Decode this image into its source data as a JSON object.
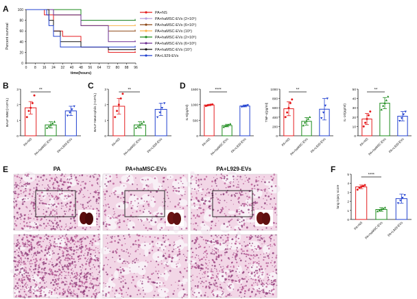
{
  "panels": {
    "A": "A",
    "B": "B",
    "C": "C",
    "D": "D",
    "E": "E",
    "F": "F"
  },
  "colors": {
    "red": "#e41a1c",
    "lavender": "#b59ddc",
    "brown": "#8b4513",
    "orange": "#f7b24a",
    "green": "#1a8a1a",
    "purple": "#6a2c91",
    "black": "#111111",
    "blue": "#1f3fcf",
    "tissue_pink": "#e7a9c8",
    "tissue_dark": "#b85a95",
    "tissue_bg": "#f2d6e6",
    "alveoli": "#f8f0f6"
  },
  "chart_data": [
    {
      "id": "A",
      "type": "line",
      "xlabel": "time(hours)",
      "ylabel": "Percent survival",
      "xlim": [
        0,
        96
      ],
      "ylim": [
        0,
        100
      ],
      "xticks": [
        0,
        8,
        16,
        24,
        32,
        40,
        48,
        56,
        64,
        72,
        80,
        88,
        96
      ],
      "yticks": [
        0,
        20,
        40,
        60,
        80,
        100
      ],
      "legend_position": "right",
      "series": [
        {
          "name": "PA+NS",
          "color": "#e41a1c",
          "x": [
            0,
            16,
            24,
            32,
            48,
            72,
            96
          ],
          "y": [
            100,
            90,
            60,
            50,
            30,
            20,
            20
          ]
        },
        {
          "name": "PA+haMSC-EVs (2×10⁵)",
          "color": "#b59ddc",
          "x": [
            0,
            24,
            48,
            96
          ],
          "y": [
            100,
            90,
            80,
            80
          ]
        },
        {
          "name": "PA+haMSC-EVs (6×10⁵)",
          "color": "#8b4513",
          "x": [
            0,
            24,
            48,
            72,
            96
          ],
          "y": [
            100,
            90,
            70,
            60,
            60
          ]
        },
        {
          "name": "PA+haMSC-EVs (10⁶)",
          "color": "#f7b24a",
          "x": [
            0,
            24,
            48,
            72,
            96
          ],
          "y": [
            100,
            90,
            70,
            70,
            70
          ]
        },
        {
          "name": "PA+haMSC-EVs (2×10⁶)",
          "color": "#1a8a1a",
          "x": [
            0,
            48,
            96
          ],
          "y": [
            100,
            80,
            80
          ]
        },
        {
          "name": "PA+haMSC-EVs (6×10⁶)",
          "color": "#6a2c91",
          "x": [
            0,
            24,
            48,
            72,
            96
          ],
          "y": [
            100,
            90,
            70,
            40,
            40
          ]
        },
        {
          "name": "PA+haMSC-EVs (10⁷)",
          "color": "#111111",
          "x": [
            0,
            20,
            24,
            30,
            48,
            72,
            96
          ],
          "y": [
            100,
            80,
            60,
            40,
            30,
            25,
            25
          ]
        },
        {
          "name": "PA+L929-EVs",
          "color": "#1f3fcf",
          "x": [
            0,
            18,
            20,
            24,
            30,
            96
          ],
          "y": [
            100,
            90,
            70,
            50,
            30,
            30
          ]
        }
      ]
    },
    {
      "id": "B",
      "type": "bar",
      "ylabel": "BALF WBC(×10⁵/L)",
      "categories": [
        "PA+NS",
        "PA+haMSC-EVs",
        "PA+L929-EVs"
      ],
      "values": [
        1.8,
        0.7,
        1.6
      ],
      "errors": [
        0.4,
        0.2,
        0.3
      ],
      "point_sets": [
        [
          1.2,
          1.6,
          1.8,
          2.1,
          2.6
        ],
        [
          0.5,
          0.6,
          0.7,
          0.8,
          0.9
        ],
        [
          1.3,
          1.5,
          1.7,
          1.9
        ]
      ],
      "colors": [
        "#e41a1c",
        "#1a8a1a",
        "#1f3fcf"
      ],
      "ylim": [
        0,
        3
      ],
      "yticks": [
        0,
        1,
        2,
        3
      ],
      "sig": {
        "from": 0,
        "to": 1,
        "label": "**"
      }
    },
    {
      "id": "C",
      "type": "bar",
      "ylabel": "BALF Neutrophils (×10⁵/L)",
      "categories": [
        "PA+NS",
        "PA+haMSC-EVs",
        "PA+L929-EVs"
      ],
      "values": [
        1.9,
        0.7,
        1.7
      ],
      "errors": [
        0.5,
        0.2,
        0.4
      ],
      "point_sets": [
        [
          1.2,
          1.6,
          2.0,
          2.4,
          2.7
        ],
        [
          0.5,
          0.6,
          0.7,
          0.8,
          0.9
        ],
        [
          1.2,
          1.5,
          1.8,
          2.1
        ]
      ],
      "colors": [
        "#e41a1c",
        "#1a8a1a",
        "#1f3fcf"
      ],
      "ylim": [
        0,
        3
      ],
      "yticks": [
        0,
        1,
        2,
        3
      ],
      "sig": {
        "from": 0,
        "to": 1,
        "label": "**"
      }
    },
    {
      "id": "D1",
      "type": "bar",
      "ylabel": "IL-6(pg/ml)",
      "categories": [
        "PA+NS",
        "PA+haMSC-EVs",
        "PA+L929-EVs"
      ],
      "values": [
        990,
        330,
        960
      ],
      "errors": [
        20,
        40,
        30
      ],
      "point_sets": [
        [
          960,
          975,
          990,
          1000,
          1010
        ],
        [
          280,
          310,
          330,
          350,
          380
        ],
        [
          930,
          950,
          970,
          990
        ]
      ],
      "colors": [
        "#e41a1c",
        "#1a8a1a",
        "#1f3fcf"
      ],
      "ylim": [
        0,
        1500
      ],
      "yticks": [
        0,
        500,
        1000,
        1500
      ],
      "sig": {
        "from": 0,
        "to": 1,
        "label": "****"
      }
    },
    {
      "id": "D2",
      "type": "bar",
      "ylabel": "TNF-α(pg/ml)",
      "categories": [
        "PA+NS",
        "PA+haMSC-EVs",
        "PA+L929-EVs"
      ],
      "values": [
        580,
        310,
        570
      ],
      "errors": [
        150,
        80,
        230
      ],
      "point_sets": [
        [
          400,
          500,
          600,
          700,
          780
        ],
        [
          220,
          280,
          320,
          360,
          400
        ],
        [
          380,
          500,
          650,
          800
        ]
      ],
      "colors": [
        "#e41a1c",
        "#1a8a1a",
        "#1f3fcf"
      ],
      "ylim": [
        0,
        1000
      ],
      "yticks": [
        0,
        200,
        400,
        600,
        800,
        1000
      ],
      "sig": {
        "from": 0,
        "to": 1,
        "label": "**"
      }
    },
    {
      "id": "D3",
      "type": "bar",
      "ylabel": "IL-10(pg/ml)",
      "categories": [
        "PA+NS",
        "PA+haMSC-EVs",
        "PA+L929-EVs"
      ],
      "values": [
        18,
        35,
        21
      ],
      "errors": [
        6,
        6,
        5
      ],
      "point_sets": [
        [
          10,
          14,
          18,
          22,
          26
        ],
        [
          28,
          32,
          35,
          38,
          42
        ],
        [
          16,
          19,
          23,
          26
        ]
      ],
      "colors": [
        "#e41a1c",
        "#1a8a1a",
        "#1f3fcf"
      ],
      "ylim": [
        0,
        50
      ],
      "yticks": [
        0,
        10,
        20,
        30,
        40,
        50
      ],
      "sig": {
        "from": 0,
        "to": 1,
        "label": "**"
      }
    },
    {
      "id": "F",
      "type": "bar",
      "ylabel": "lung injury score",
      "categories": [
        "PA+NS",
        "PA+haMSC-EVs",
        "PA+L929-EVs"
      ],
      "values": [
        3.6,
        1.1,
        2.3
      ],
      "errors": [
        0.2,
        0.2,
        0.5
      ],
      "point_sets": [
        [
          3.3,
          3.5,
          3.6,
          3.7,
          3.8
        ],
        [
          0.9,
          1.0,
          1.1,
          1.2,
          1.3
        ],
        [
          1.8,
          2.1,
          2.4,
          2.7
        ]
      ],
      "colors": [
        "#e41a1c",
        "#1a8a1a",
        "#1f3fcf"
      ],
      "ylim": [
        0,
        5
      ],
      "yticks": [
        0,
        1,
        2,
        3,
        4,
        5
      ],
      "sig": {
        "from": 0,
        "to": 1,
        "label": "****"
      }
    }
  ],
  "histology": {
    "titles": [
      "PA",
      "PA+haMSC-EVs",
      "PA+L929-EVs"
    ]
  }
}
